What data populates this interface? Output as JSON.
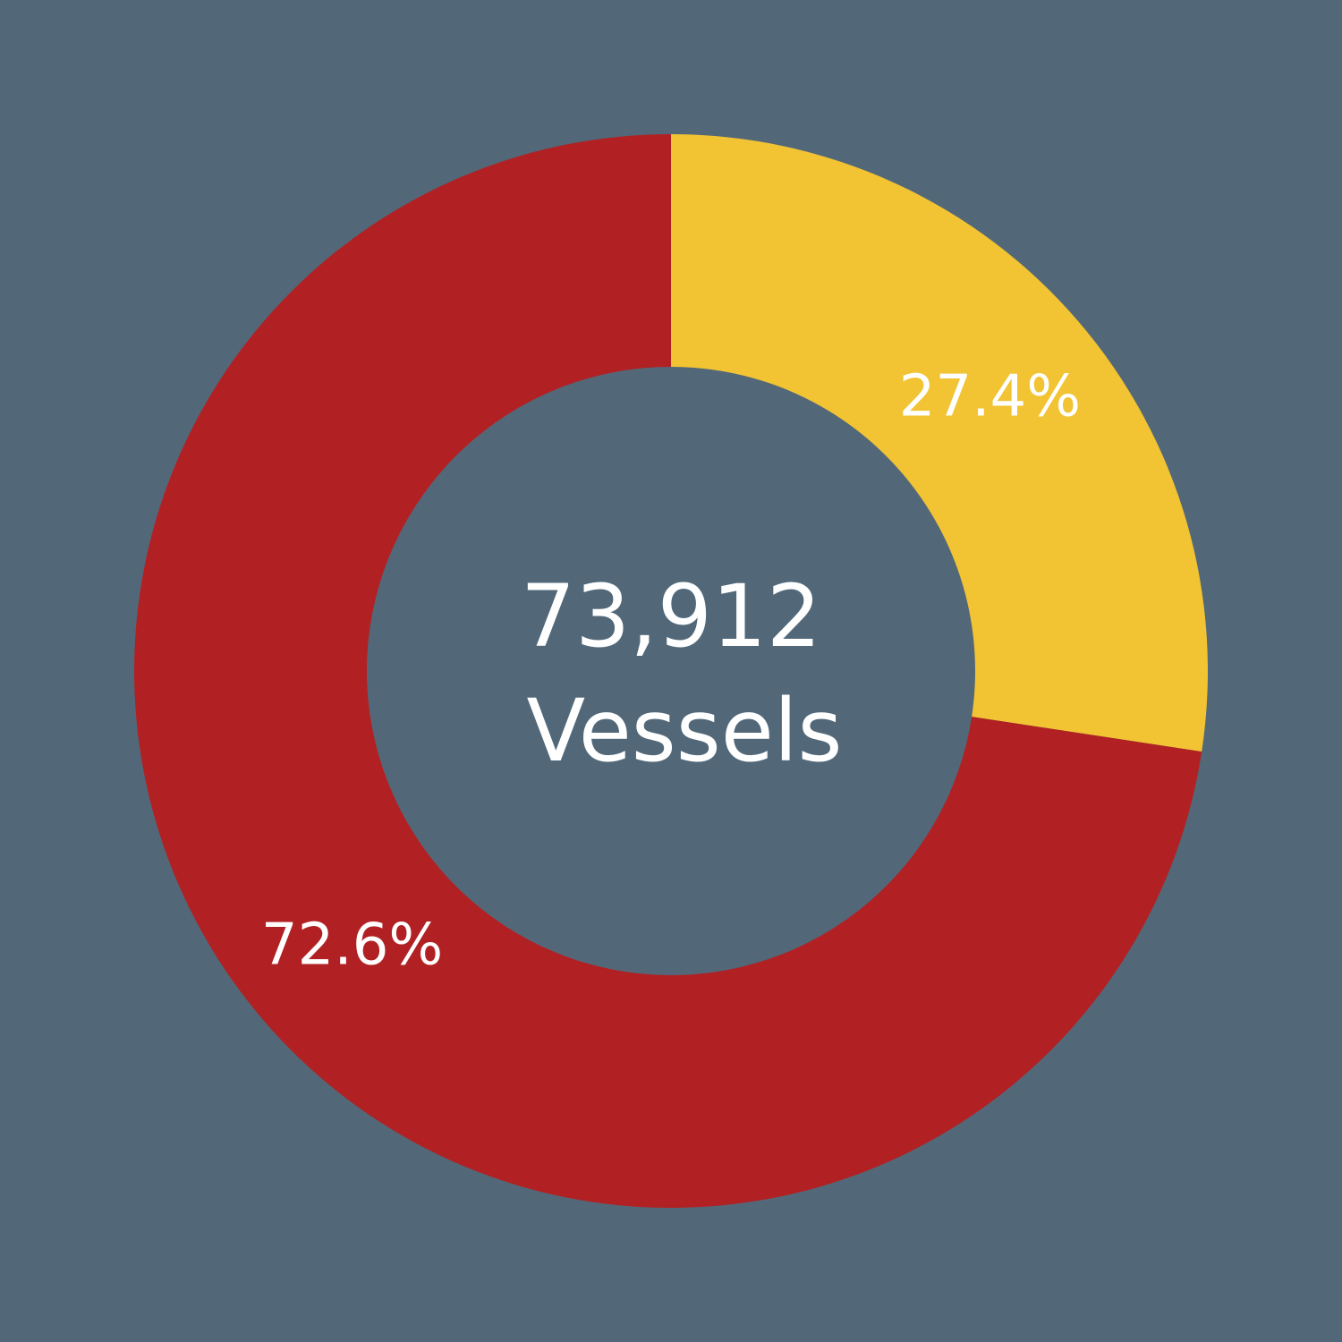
{
  "chart_data": {
    "type": "pie",
    "subtype": "donut",
    "center_text": [
      "73,912",
      "Vessels"
    ],
    "slices": [
      {
        "value": 27.4,
        "label": "27.4%",
        "color": "#F2C332"
      },
      {
        "value": 72.6,
        "label": "72.6%",
        "color": "#B12123"
      }
    ],
    "start_angle": "12 o'clock",
    "direction": "clockwise",
    "background_color": "#526879",
    "text_color": "#FFFFFF"
  }
}
